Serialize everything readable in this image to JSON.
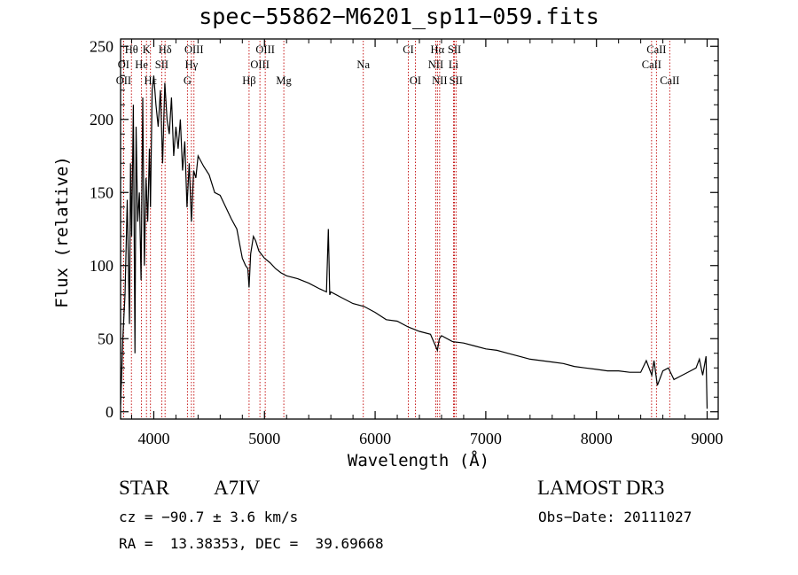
{
  "chart_data": {
    "type": "line",
    "title": "spec−55862−M6201_sp11−059.fits",
    "xlabel": "Wavelength (Å)",
    "ylabel": "Flux (relative)",
    "xlim": [
      3700,
      9100
    ],
    "ylim": [
      -5,
      255
    ],
    "x_ticks": [
      4000,
      5000,
      6000,
      7000,
      8000,
      9000
    ],
    "x_tick_labels": [
      "4000",
      "5000",
      "6000",
      "7000",
      "8000",
      "9000"
    ],
    "y_ticks": [
      0,
      50,
      100,
      150,
      200,
      250
    ],
    "y_tick_labels": [
      "0",
      "50",
      "100",
      "150",
      "200",
      "250"
    ],
    "series": [
      {
        "name": "flux",
        "x": [
          3700,
          3710,
          3720,
          3740,
          3760,
          3780,
          3790,
          3800,
          3815,
          3830,
          3840,
          3855,
          3870,
          3885,
          3900,
          3915,
          3930,
          3945,
          3960,
          3970,
          3985,
          4000,
          4020,
          4040,
          4060,
          4080,
          4100,
          4120,
          4140,
          4160,
          4180,
          4200,
          4220,
          4240,
          4260,
          4280,
          4300,
          4320,
          4340,
          4360,
          4380,
          4400,
          4450,
          4500,
          4550,
          4600,
          4650,
          4700,
          4750,
          4800,
          4830,
          4850,
          4861,
          4875,
          4900,
          4920,
          4950,
          5000,
          5050,
          5100,
          5150,
          5200,
          5300,
          5400,
          5500,
          5560,
          5577,
          5590,
          5600,
          5700,
          5800,
          5900,
          6000,
          6100,
          6200,
          6300,
          6400,
          6500,
          6563,
          6580,
          6600,
          6700,
          6800,
          6900,
          7000,
          7100,
          7200,
          7300,
          7400,
          7500,
          7600,
          7700,
          7800,
          7900,
          8000,
          8100,
          8200,
          8300,
          8400,
          8450,
          8500,
          8520,
          8550,
          8600,
          8650,
          8700,
          8750,
          8800,
          8850,
          8900,
          8930,
          8960,
          8990,
          9000
        ],
        "values": [
          5,
          25,
          50,
          80,
          145,
          60,
          170,
          120,
          210,
          40,
          195,
          130,
          150,
          90,
          215,
          100,
          160,
          130,
          180,
          140,
          220,
          230,
          210,
          195,
          220,
          170,
          225,
          200,
          190,
          215,
          175,
          195,
          180,
          200,
          165,
          185,
          140,
          170,
          130,
          165,
          160,
          175,
          168,
          162,
          150,
          148,
          140,
          132,
          125,
          105,
          100,
          98,
          85,
          108,
          120,
          117,
          110,
          105,
          102,
          98,
          95,
          93,
          91,
          88,
          84,
          82,
          125,
          80,
          82,
          78,
          74,
          72,
          68,
          63,
          62,
          58,
          55,
          53,
          42,
          50,
          52,
          48,
          47,
          45,
          43,
          42,
          40,
          38,
          36,
          35,
          34,
          33,
          31,
          30,
          29,
          28,
          28,
          27,
          27,
          35,
          25,
          35,
          18,
          28,
          30,
          22,
          24,
          26,
          28,
          30,
          36,
          25,
          38,
          2
        ]
      }
    ],
    "spectral_lines": [
      {
        "label": "Hθ",
        "x": 3798,
        "row": 0
      },
      {
        "label": "K",
        "x": 3934,
        "row": 0
      },
      {
        "label": "Hδ",
        "x": 4102,
        "row": 0
      },
      {
        "label": "OIII",
        "x": 4363,
        "row": 0
      },
      {
        "label": "OIII",
        "x": 5007,
        "row": 0
      },
      {
        "label": "CI",
        "x": 6300,
        "row": 0
      },
      {
        "label": "Hα",
        "x": 6563,
        "row": 0
      },
      {
        "label": "SII",
        "x": 6717,
        "row": 0
      },
      {
        "label": "CaII",
        "x": 8542,
        "row": 0
      },
      {
        "label": "OI",
        "x": 3727,
        "row": 1
      },
      {
        "label": "He",
        "x": 3889,
        "row": 1
      },
      {
        "label": "SII",
        "x": 4072,
        "row": 1
      },
      {
        "label": "Hγ",
        "x": 4340,
        "row": 1
      },
      {
        "label": "OIII",
        "x": 4959,
        "row": 1
      },
      {
        "label": "Na",
        "x": 5893,
        "row": 1
      },
      {
        "label": "NII",
        "x": 6548,
        "row": 1
      },
      {
        "label": "Li",
        "x": 6708,
        "row": 1
      },
      {
        "label": "CaII",
        "x": 8498,
        "row": 1
      },
      {
        "label": "OII",
        "x": 3727,
        "row": 2
      },
      {
        "label": "Hε",
        "x": 3970,
        "row": 2
      },
      {
        "label": "G",
        "x": 4304,
        "row": 2
      },
      {
        "label": "Hβ",
        "x": 4861,
        "row": 2
      },
      {
        "label": "Mg",
        "x": 5175,
        "row": 2
      },
      {
        "label": "OI",
        "x": 6364,
        "row": 2
      },
      {
        "label": "NII",
        "x": 6583,
        "row": 2
      },
      {
        "label": "SII",
        "x": 6731,
        "row": 2
      },
      {
        "label": "CaII",
        "x": 8662,
        "row": 2
      }
    ]
  },
  "info": {
    "object_type": "STAR",
    "spectral_class": "A7IV",
    "survey": "LAMOST DR3",
    "cz": "cz = −90.7 ± 3.6 km/s",
    "obs_date": "Obs−Date: 20111027",
    "coords": "RA =  13.38353, DEC =  39.69668"
  }
}
